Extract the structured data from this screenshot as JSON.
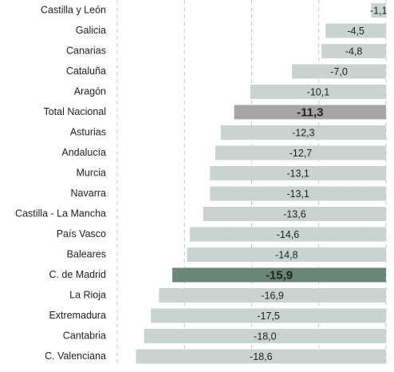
{
  "chart_data": {
    "type": "bar",
    "orientation": "horizontal",
    "categories": [
      "Castilla y León",
      "Galicia",
      "Canarias",
      "Cataluña",
      "Aragón",
      "Total Nacional",
      "Asturias",
      "Andalucía",
      "Murcia",
      "Navarra",
      "Castilla - La Mancha",
      "País Vasco",
      "Baleares",
      "C. de Madrid",
      "La Rioja",
      "Extremadura",
      "Cantabria",
      "C. Valenciana"
    ],
    "values": [
      -1.1,
      -4.5,
      -4.8,
      -7.0,
      -10.1,
      -11.3,
      -12.3,
      -12.7,
      -13.1,
      -13.1,
      -13.6,
      -14.6,
      -14.8,
      -15.9,
      -16.9,
      -17.5,
      -18.0,
      -18.6
    ],
    "value_labels": [
      "-1,1",
      "-4,5",
      "-4,8",
      "-7,0",
      "-10,1",
      "-11,3",
      "-12,3",
      "-12,7",
      "-13,1",
      "-13,1",
      "-13,6",
      "-14,6",
      "-14,8",
      "-15,9",
      "-16,9",
      "-17,5",
      "-18,0",
      "-18,6"
    ],
    "color": "#c9d3cf",
    "colors": [
      "#c9d3cf",
      "#c9d3cf",
      "#c9d3cf",
      "#c9d3cf",
      "#c9d3cf",
      "#a6a6a6",
      "#c9d3cf",
      "#c9d3cf",
      "#c9d3cf",
      "#c9d3cf",
      "#c9d3cf",
      "#c9d3cf",
      "#c9d3cf",
      "#6b8676",
      "#c9d3cf",
      "#c9d3cf",
      "#c9d3cf",
      "#c9d3cf"
    ],
    "xlim": [
      -20,
      0
    ],
    "xticks": [
      -20,
      -15,
      -10,
      -5,
      0
    ],
    "grid": true
  }
}
